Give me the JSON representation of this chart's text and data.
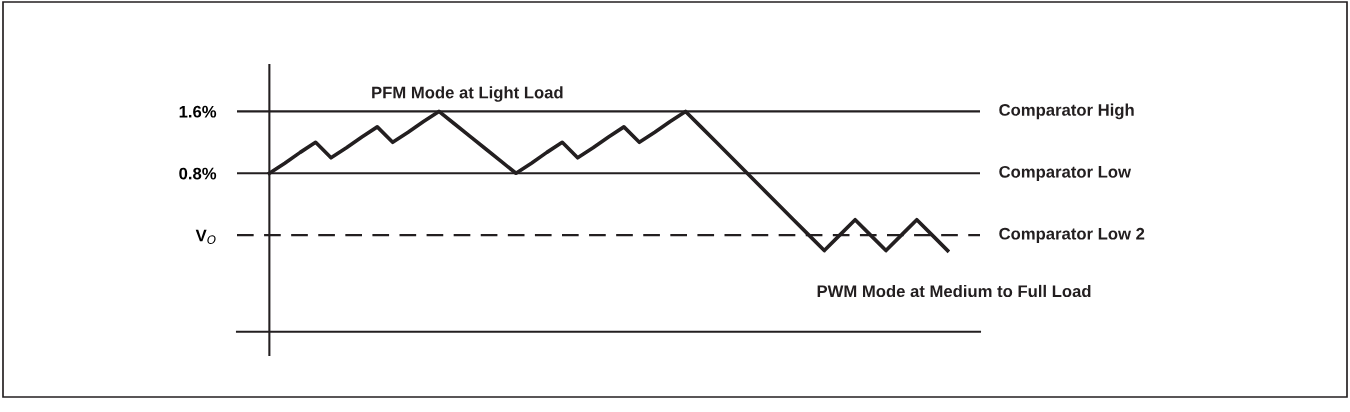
{
  "chart_data": {
    "type": "line",
    "categories": [
      null,
      null,
      null,
      null,
      null,
      null,
      null,
      null,
      null,
      null,
      null,
      null,
      null,
      null,
      null,
      null,
      null,
      null,
      null,
      null,
      null,
      null,
      null,
      null,
      null,
      null,
      null,
      null,
      null,
      null,
      null,
      null,
      null,
      null,
      null,
      null,
      null,
      null,
      null,
      null,
      null,
      null,
      null,
      null,
      null
    ],
    "series": [
      {
        "color": "#231f20",
        "values": [
          0.8,
          0.93,
          1.07,
          1.2,
          1.0,
          1.13,
          1.27,
          1.4,
          1.2,
          1.33,
          1.47,
          1.6,
          1.44,
          1.28,
          1.12,
          0.96,
          0.8,
          0.93,
          1.07,
          1.2,
          1.0,
          1.13,
          1.27,
          1.4,
          1.2,
          1.33,
          1.47,
          1.6,
          1.4,
          1.2,
          1.0,
          0.8,
          0.6,
          0.4,
          0.2,
          0.0,
          -0.2,
          0.0,
          0.2,
          0.0,
          -0.2,
          0.0,
          0.2,
          0.0,
          -0.2
        ]
      }
    ],
    "ylim": [
      -1.55,
      2.2
    ],
    "yticks": [
      {
        "value": 1.6,
        "label": "1.6%"
      },
      {
        "value": 0.8,
        "label": "0.8%"
      },
      {
        "value": 0,
        "label": "V$_{O}$"
      }
    ],
    "tick_labels": "y",
    "grid": false,
    "legend": false,
    "marker": "none",
    "line_style": "solid",
    "ref_lines": [
      {
        "axis": "y",
        "value": 1.6,
        "label": "Comparator High",
        "color": "#231f20",
        "line_style": "solid"
      },
      {
        "axis": "y",
        "value": 0.8,
        "label": "Comparator Low",
        "color": "#231f20",
        "line_style": "solid"
      },
      {
        "axis": "y",
        "value": 0,
        "label": "Comparator Low 2",
        "color": "#231f20",
        "line_style": "dashed"
      }
    ],
    "annotations": [
      "PFM Mode at Light Load",
      "PWM Mode at Medium to Full Load"
    ]
  }
}
